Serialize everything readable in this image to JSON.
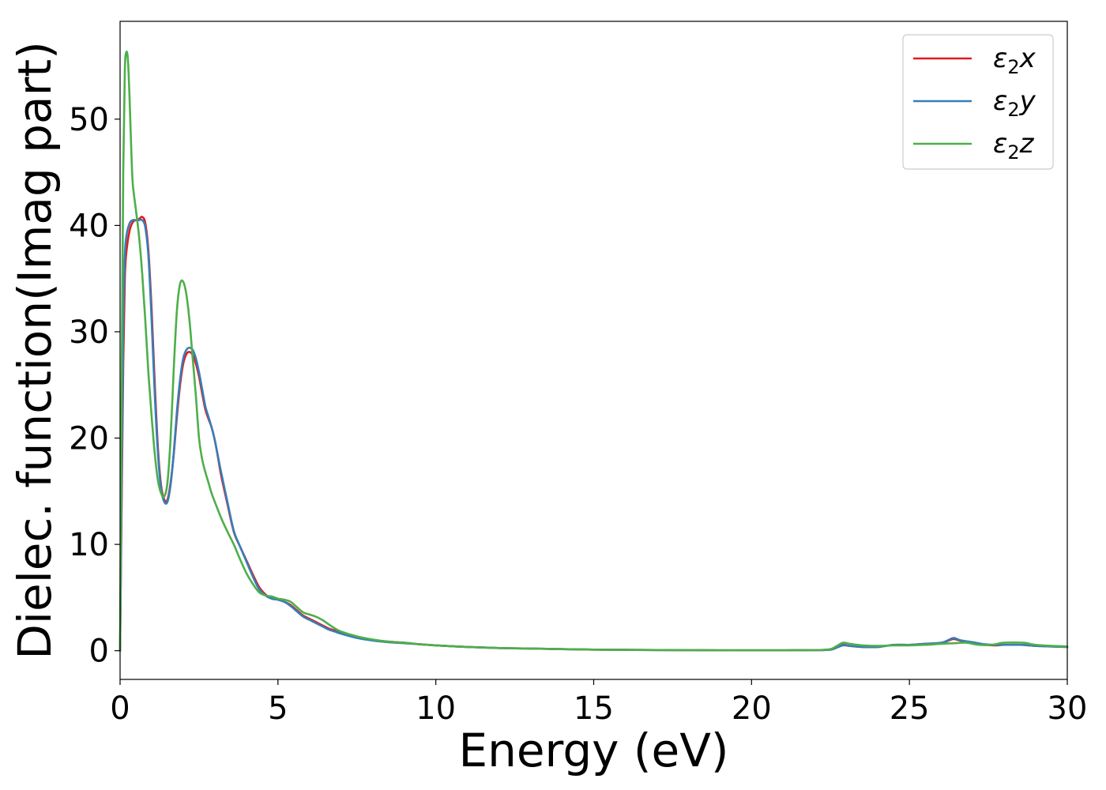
{
  "chart_data": {
    "type": "line",
    "xlabel": "Energy (eV)",
    "ylabel": "Dielec. function(Imag part)",
    "xlim": [
      0,
      30
    ],
    "ylim": [
      -2.7,
      59.2
    ],
    "xticks": [
      0,
      5,
      10,
      15,
      20,
      25,
      30
    ],
    "yticks": [
      0,
      10,
      20,
      30,
      40,
      50
    ],
    "xtick_labels": [
      "0",
      "5",
      "10",
      "15",
      "20",
      "25",
      "30"
    ],
    "ytick_labels": [
      "0",
      "10",
      "20",
      "30",
      "40",
      "50"
    ],
    "grid": false,
    "legend_position": "top-right",
    "series": [
      {
        "name": "ε₂x",
        "legend_base": "ε",
        "legend_sub": "2",
        "legend_tail": "x",
        "color": "#e41a1c",
        "x": [
          0,
          0.05,
          0.1,
          0.15,
          0.2,
          0.3,
          0.4,
          0.5,
          0.6,
          0.7,
          0.8,
          0.9,
          1.0,
          1.1,
          1.2,
          1.3,
          1.4,
          1.5,
          1.6,
          1.7,
          1.8,
          1.9,
          2.0,
          2.1,
          2.2,
          2.3,
          2.4,
          2.5,
          2.6,
          2.7,
          2.8,
          2.9,
          3.0,
          3.1,
          3.2,
          3.4,
          3.6,
          3.8,
          4.0,
          4.2,
          4.4,
          4.6,
          4.8,
          5.0,
          5.2,
          5.4,
          5.6,
          5.8,
          6.0,
          6.2,
          6.4,
          6.6,
          6.8,
          7.0,
          7.5,
          8.0,
          8.5,
          9.0,
          9.5,
          10,
          11,
          12,
          13,
          14,
          15,
          16,
          17,
          18,
          19,
          20,
          21,
          22,
          22.5,
          22.7,
          22.9,
          23.1,
          23.5,
          24,
          24.5,
          25,
          25.5,
          26,
          26.2,
          26.4,
          26.6,
          27,
          27.4,
          27.7,
          28,
          28.5,
          28.8,
          29,
          29.5,
          30
        ],
        "y": [
          0,
          14,
          27,
          35,
          37.5,
          39.5,
          40.3,
          40.5,
          40.6,
          40.8,
          40.2,
          37.5,
          32,
          25,
          19,
          15.5,
          14.2,
          14.2,
          15.8,
          18.5,
          22,
          25,
          27,
          27.9,
          28.1,
          27.8,
          27,
          25.8,
          24.2,
          22.7,
          21.8,
          21,
          19.8,
          18.2,
          16.5,
          13.8,
          11.2,
          9.8,
          8.5,
          7.2,
          6,
          5.3,
          4.9,
          4.8,
          4.6,
          4.3,
          3.8,
          3.3,
          3,
          2.7,
          2.4,
          2.1,
          1.9,
          1.7,
          1.3,
          1.0,
          0.85,
          0.75,
          0.6,
          0.5,
          0.35,
          0.25,
          0.2,
          0.15,
          0.1,
          0.08,
          0.06,
          0.05,
          0.04,
          0.04,
          0.04,
          0.05,
          0.1,
          0.3,
          0.55,
          0.45,
          0.35,
          0.35,
          0.55,
          0.55,
          0.65,
          0.7,
          0.9,
          1.1,
          0.95,
          0.75,
          0.55,
          0.5,
          0.55,
          0.55,
          0.5,
          0.45,
          0.4,
          0.35
        ]
      },
      {
        "name": "ε₂y",
        "legend_base": "ε",
        "legend_sub": "2",
        "legend_tail": "y",
        "color": "#377eb8",
        "x": [
          0,
          0.05,
          0.1,
          0.15,
          0.2,
          0.3,
          0.4,
          0.5,
          0.6,
          0.7,
          0.8,
          0.9,
          1.0,
          1.1,
          1.2,
          1.3,
          1.4,
          1.5,
          1.6,
          1.7,
          1.8,
          1.9,
          2.0,
          2.1,
          2.2,
          2.3,
          2.4,
          2.5,
          2.6,
          2.7,
          2.8,
          2.9,
          3.0,
          3.1,
          3.2,
          3.4,
          3.6,
          3.8,
          4.0,
          4.2,
          4.4,
          4.6,
          4.8,
          5.0,
          5.2,
          5.4,
          5.6,
          5.8,
          6.0,
          6.2,
          6.4,
          6.6,
          6.8,
          7.0,
          7.5,
          8.0,
          8.5,
          9.0,
          9.5,
          10,
          11,
          12,
          13,
          14,
          15,
          16,
          17,
          18,
          19,
          20,
          21,
          22,
          22.5,
          22.7,
          22.9,
          23.1,
          23.5,
          24,
          24.5,
          25,
          25.5,
          26,
          26.2,
          26.4,
          26.6,
          27,
          27.4,
          27.7,
          28,
          28.5,
          28.8,
          29,
          29.5,
          30
        ],
        "y": [
          0,
          16,
          30,
          37,
          39,
          40.2,
          40.5,
          40.5,
          40.5,
          40.5,
          39.8,
          37,
          31,
          24,
          18.5,
          15.2,
          14.0,
          14.0,
          15.6,
          18.6,
          22.5,
          25.5,
          27.5,
          28.3,
          28.5,
          28.3,
          27.5,
          26.2,
          24.6,
          23,
          22,
          21,
          19.8,
          18.3,
          16.8,
          14,
          11.3,
          9.8,
          8.4,
          7,
          5.8,
          5.2,
          4.9,
          4.8,
          4.6,
          4.2,
          3.7,
          3.2,
          2.9,
          2.6,
          2.3,
          2.0,
          1.8,
          1.6,
          1.2,
          0.95,
          0.8,
          0.7,
          0.6,
          0.5,
          0.35,
          0.25,
          0.2,
          0.15,
          0.1,
          0.08,
          0.06,
          0.05,
          0.04,
          0.04,
          0.04,
          0.05,
          0.1,
          0.3,
          0.5,
          0.45,
          0.35,
          0.35,
          0.55,
          0.55,
          0.65,
          0.75,
          0.95,
          1.2,
          1.0,
          0.8,
          0.6,
          0.55,
          0.55,
          0.55,
          0.5,
          0.45,
          0.4,
          0.35
        ]
      },
      {
        "name": "ε₂z",
        "legend_base": "ε",
        "legend_sub": "2",
        "legend_tail": "z",
        "color": "#4daf4a",
        "x": [
          0,
          0.05,
          0.1,
          0.15,
          0.2,
          0.25,
          0.3,
          0.35,
          0.4,
          0.5,
          0.6,
          0.7,
          0.8,
          0.9,
          1.0,
          1.1,
          1.2,
          1.3,
          1.4,
          1.5,
          1.6,
          1.7,
          1.8,
          1.9,
          2.0,
          2.1,
          2.2,
          2.3,
          2.4,
          2.5,
          2.6,
          2.7,
          2.8,
          2.9,
          3.0,
          3.2,
          3.4,
          3.6,
          3.8,
          4.0,
          4.2,
          4.4,
          4.6,
          4.8,
          5.0,
          5.2,
          5.4,
          5.6,
          5.8,
          6.0,
          6.2,
          6.4,
          6.6,
          6.8,
          7.0,
          7.5,
          8.0,
          8.5,
          9.0,
          9.5,
          10,
          11,
          12,
          13,
          14,
          15,
          16,
          17,
          18,
          19,
          20,
          21,
          22,
          22.5,
          22.7,
          22.9,
          23.1,
          23.5,
          24,
          24.5,
          25,
          25.5,
          26,
          26.4,
          26.8,
          27.2,
          27.6,
          27.8,
          28,
          28.6,
          28.8,
          29,
          29.5,
          30
        ],
        "y": [
          0,
          25,
          45,
          54.5,
          56.3,
          55.5,
          52,
          47.5,
          44,
          41.5,
          39,
          35.5,
          31,
          26,
          22,
          18.5,
          16,
          14.8,
          14.5,
          15.8,
          20,
          26.5,
          32,
          34.5,
          34.7,
          33.5,
          31,
          27.5,
          24,
          20,
          18,
          16.8,
          15.8,
          14.8,
          14,
          12.5,
          11.2,
          10,
          8.6,
          7.3,
          6.3,
          5.5,
          5.2,
          5.1,
          4.9,
          4.8,
          4.6,
          4.1,
          3.6,
          3.4,
          3.2,
          2.9,
          2.5,
          2.1,
          1.8,
          1.35,
          1.05,
          0.85,
          0.75,
          0.6,
          0.5,
          0.35,
          0.25,
          0.2,
          0.15,
          0.1,
          0.08,
          0.06,
          0.05,
          0.04,
          0.04,
          0.04,
          0.05,
          0.15,
          0.45,
          0.75,
          0.65,
          0.5,
          0.45,
          0.5,
          0.5,
          0.55,
          0.65,
          0.7,
          0.75,
          0.55,
          0.55,
          0.65,
          0.75,
          0.75,
          0.65,
          0.55,
          0.45,
          0.4
        ]
      }
    ]
  }
}
